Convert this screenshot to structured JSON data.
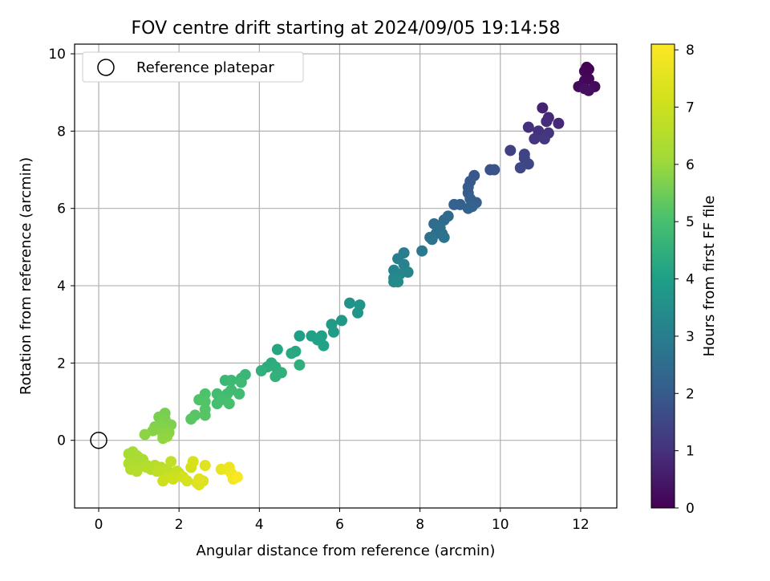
{
  "chart_data": {
    "type": "scatter",
    "title": "FOV centre drift starting at 2024/09/05 19:14:58",
    "xlabel": "Angular distance from reference (arcmin)",
    "ylabel": "Rotation from reference (arcmin)",
    "xlim": [
      -0.6,
      12.9
    ],
    "ylim": [
      -1.75,
      10.25
    ],
    "xticks": [
      0,
      2,
      4,
      6,
      8,
      10,
      12
    ],
    "yticks": [
      0,
      2,
      4,
      6,
      8,
      10
    ],
    "grid": true,
    "legend": {
      "location": "top-left",
      "entries": [
        {
          "label": "Reference platepar",
          "marker": "open-circle"
        }
      ]
    },
    "reference_point": {
      "x": 0,
      "y": 0
    },
    "colorbar": {
      "label": "Hours from first FF file",
      "colormap": "viridis",
      "range": [
        0,
        8.1
      ],
      "ticks": [
        0,
        1,
        2,
        3,
        4,
        5,
        6,
        7,
        8
      ]
    },
    "points": [
      {
        "x": 12.15,
        "y": 9.65,
        "h": 0.02
      },
      {
        "x": 12.2,
        "y": 9.6,
        "h": 0.05
      },
      {
        "x": 12.1,
        "y": 9.55,
        "h": 0.08
      },
      {
        "x": 12.2,
        "y": 9.35,
        "h": 0.1
      },
      {
        "x": 12.1,
        "y": 9.3,
        "h": 0.12
      },
      {
        "x": 12.05,
        "y": 9.2,
        "h": 0.15
      },
      {
        "x": 11.95,
        "y": 9.15,
        "h": 0.18
      },
      {
        "x": 12.35,
        "y": 9.15,
        "h": 0.2
      },
      {
        "x": 12.2,
        "y": 9.05,
        "h": 0.25
      },
      {
        "x": 12.1,
        "y": 9.1,
        "h": 0.3
      },
      {
        "x": 11.05,
        "y": 8.6,
        "h": 0.7
      },
      {
        "x": 11.2,
        "y": 8.35,
        "h": 0.8
      },
      {
        "x": 11.45,
        "y": 8.2,
        "h": 0.85
      },
      {
        "x": 11.15,
        "y": 8.25,
        "h": 0.9
      },
      {
        "x": 10.7,
        "y": 8.1,
        "h": 0.95
      },
      {
        "x": 10.95,
        "y": 8.0,
        "h": 1.0
      },
      {
        "x": 11.2,
        "y": 7.95,
        "h": 1.05
      },
      {
        "x": 10.85,
        "y": 7.8,
        "h": 1.1
      },
      {
        "x": 11.1,
        "y": 7.8,
        "h": 1.15
      },
      {
        "x": 10.25,
        "y": 7.5,
        "h": 1.35
      },
      {
        "x": 10.6,
        "y": 7.4,
        "h": 1.4
      },
      {
        "x": 10.6,
        "y": 7.3,
        "h": 1.45
      },
      {
        "x": 10.7,
        "y": 7.15,
        "h": 1.5
      },
      {
        "x": 10.5,
        "y": 7.05,
        "h": 1.55
      },
      {
        "x": 9.75,
        "y": 7.0,
        "h": 1.75
      },
      {
        "x": 9.85,
        "y": 7.0,
        "h": 1.8
      },
      {
        "x": 9.35,
        "y": 6.85,
        "h": 1.9
      },
      {
        "x": 9.25,
        "y": 6.7,
        "h": 1.95
      },
      {
        "x": 9.2,
        "y": 6.55,
        "h": 2.0
      },
      {
        "x": 9.2,
        "y": 6.4,
        "h": 2.05
      },
      {
        "x": 9.25,
        "y": 6.25,
        "h": 2.1
      },
      {
        "x": 9.4,
        "y": 6.15,
        "h": 2.12
      },
      {
        "x": 9.0,
        "y": 6.1,
        "h": 2.15
      },
      {
        "x": 8.85,
        "y": 6.1,
        "h": 2.18
      },
      {
        "x": 9.3,
        "y": 6.05,
        "h": 2.2
      },
      {
        "x": 9.2,
        "y": 6.0,
        "h": 2.22
      },
      {
        "x": 8.7,
        "y": 5.8,
        "h": 2.4
      },
      {
        "x": 8.6,
        "y": 5.7,
        "h": 2.45
      },
      {
        "x": 8.35,
        "y": 5.6,
        "h": 2.5
      },
      {
        "x": 8.5,
        "y": 5.5,
        "h": 2.55
      },
      {
        "x": 8.4,
        "y": 5.35,
        "h": 2.6
      },
      {
        "x": 8.55,
        "y": 5.35,
        "h": 2.62
      },
      {
        "x": 8.25,
        "y": 5.25,
        "h": 2.65
      },
      {
        "x": 8.6,
        "y": 5.25,
        "h": 2.68
      },
      {
        "x": 8.3,
        "y": 5.2,
        "h": 2.7
      },
      {
        "x": 8.05,
        "y": 4.9,
        "h": 2.85
      },
      {
        "x": 7.6,
        "y": 4.85,
        "h": 3.0
      },
      {
        "x": 7.45,
        "y": 4.7,
        "h": 3.05
      },
      {
        "x": 7.6,
        "y": 4.55,
        "h": 3.1
      },
      {
        "x": 7.35,
        "y": 4.4,
        "h": 3.15
      },
      {
        "x": 7.7,
        "y": 4.35,
        "h": 3.2
      },
      {
        "x": 7.5,
        "y": 4.3,
        "h": 3.25
      },
      {
        "x": 7.35,
        "y": 4.2,
        "h": 3.3
      },
      {
        "x": 7.35,
        "y": 4.1,
        "h": 3.35
      },
      {
        "x": 7.45,
        "y": 4.1,
        "h": 3.4
      },
      {
        "x": 6.25,
        "y": 3.55,
        "h": 3.6
      },
      {
        "x": 6.5,
        "y": 3.5,
        "h": 3.65
      },
      {
        "x": 6.45,
        "y": 3.3,
        "h": 3.7
      },
      {
        "x": 6.05,
        "y": 3.1,
        "h": 3.8
      },
      {
        "x": 5.8,
        "y": 3.0,
        "h": 3.85
      },
      {
        "x": 5.85,
        "y": 2.8,
        "h": 3.9
      },
      {
        "x": 5.0,
        "y": 2.7,
        "h": 4.0
      },
      {
        "x": 5.3,
        "y": 2.7,
        "h": 4.02
      },
      {
        "x": 5.55,
        "y": 2.7,
        "h": 4.05
      },
      {
        "x": 5.45,
        "y": 2.6,
        "h": 4.08
      },
      {
        "x": 5.6,
        "y": 2.45,
        "h": 4.1
      },
      {
        "x": 4.45,
        "y": 2.35,
        "h": 4.2
      },
      {
        "x": 4.9,
        "y": 2.3,
        "h": 4.25
      },
      {
        "x": 4.8,
        "y": 2.25,
        "h": 4.28
      },
      {
        "x": 4.3,
        "y": 2.0,
        "h": 4.35
      },
      {
        "x": 4.2,
        "y": 1.9,
        "h": 4.4
      },
      {
        "x": 4.4,
        "y": 1.9,
        "h": 4.42
      },
      {
        "x": 5.0,
        "y": 1.95,
        "h": 4.45
      },
      {
        "x": 4.05,
        "y": 1.8,
        "h": 4.48
      },
      {
        "x": 4.55,
        "y": 1.75,
        "h": 4.5
      },
      {
        "x": 4.4,
        "y": 1.65,
        "h": 4.52
      },
      {
        "x": 3.65,
        "y": 1.7,
        "h": 4.7
      },
      {
        "x": 3.55,
        "y": 1.6,
        "h": 4.72
      },
      {
        "x": 3.15,
        "y": 1.55,
        "h": 4.75
      },
      {
        "x": 3.3,
        "y": 1.55,
        "h": 4.78
      },
      {
        "x": 3.55,
        "y": 1.5,
        "h": 4.8
      },
      {
        "x": 3.3,
        "y": 1.3,
        "h": 4.82
      },
      {
        "x": 3.2,
        "y": 1.2,
        "h": 4.85
      },
      {
        "x": 3.5,
        "y": 1.2,
        "h": 4.88
      },
      {
        "x": 2.95,
        "y": 1.2,
        "h": 4.9
      },
      {
        "x": 3.15,
        "y": 1.1,
        "h": 4.92
      },
      {
        "x": 3.05,
        "y": 1.05,
        "h": 4.95
      },
      {
        "x": 2.95,
        "y": 0.95,
        "h": 4.98
      },
      {
        "x": 3.25,
        "y": 0.95,
        "h": 5.0
      },
      {
        "x": 2.65,
        "y": 1.2,
        "h": 5.1
      },
      {
        "x": 2.5,
        "y": 1.05,
        "h": 5.12
      },
      {
        "x": 2.65,
        "y": 1.0,
        "h": 5.15
      },
      {
        "x": 2.65,
        "y": 0.8,
        "h": 5.18
      },
      {
        "x": 2.65,
        "y": 0.65,
        "h": 5.2
      },
      {
        "x": 2.4,
        "y": 0.65,
        "h": 5.22
      },
      {
        "x": 2.3,
        "y": 0.55,
        "h": 5.25
      },
      {
        "x": 1.65,
        "y": 0.7,
        "h": 5.6
      },
      {
        "x": 1.5,
        "y": 0.6,
        "h": 5.62
      },
      {
        "x": 1.65,
        "y": 0.55,
        "h": 5.65
      },
      {
        "x": 1.8,
        "y": 0.4,
        "h": 5.68
      },
      {
        "x": 1.55,
        "y": 0.4,
        "h": 5.7
      },
      {
        "x": 1.4,
        "y": 0.35,
        "h": 5.72
      },
      {
        "x": 1.6,
        "y": 0.3,
        "h": 5.75
      },
      {
        "x": 1.35,
        "y": 0.25,
        "h": 5.78
      },
      {
        "x": 1.75,
        "y": 0.2,
        "h": 5.8
      },
      {
        "x": 1.6,
        "y": 0.15,
        "h": 5.82
      },
      {
        "x": 1.15,
        "y": 0.15,
        "h": 5.85
      },
      {
        "x": 1.7,
        "y": 0.1,
        "h": 5.88
      },
      {
        "x": 1.6,
        "y": 0.05,
        "h": 5.9
      },
      {
        "x": 0.85,
        "y": -0.3,
        "h": 6.2
      },
      {
        "x": 0.75,
        "y": -0.35,
        "h": 6.22
      },
      {
        "x": 0.95,
        "y": -0.4,
        "h": 6.25
      },
      {
        "x": 1.0,
        "y": -0.45,
        "h": 6.28
      },
      {
        "x": 1.1,
        "y": -0.5,
        "h": 6.3
      },
      {
        "x": 0.8,
        "y": -0.55,
        "h": 6.32
      },
      {
        "x": 0.95,
        "y": -0.6,
        "h": 6.35
      },
      {
        "x": 0.75,
        "y": -0.6,
        "h": 6.38
      },
      {
        "x": 1.2,
        "y": -0.65,
        "h": 6.4
      },
      {
        "x": 1.0,
        "y": -0.7,
        "h": 6.42
      },
      {
        "x": 0.8,
        "y": -0.75,
        "h": 6.45
      },
      {
        "x": 1.3,
        "y": -0.75,
        "h": 6.48
      },
      {
        "x": 0.95,
        "y": -0.8,
        "h": 6.5
      },
      {
        "x": 1.2,
        "y": -0.7,
        "h": 6.52
      },
      {
        "x": 1.4,
        "y": -0.65,
        "h": 6.55
      },
      {
        "x": 1.55,
        "y": -0.7,
        "h": 6.6
      },
      {
        "x": 1.7,
        "y": -0.75,
        "h": 6.65
      },
      {
        "x": 1.6,
        "y": -0.8,
        "h": 6.7
      },
      {
        "x": 1.45,
        "y": -0.8,
        "h": 6.72
      },
      {
        "x": 1.8,
        "y": -0.55,
        "h": 6.75
      },
      {
        "x": 1.95,
        "y": -0.8,
        "h": 6.8
      },
      {
        "x": 1.85,
        "y": -0.9,
        "h": 6.85
      },
      {
        "x": 1.7,
        "y": -0.95,
        "h": 6.9
      },
      {
        "x": 2.0,
        "y": -0.85,
        "h": 6.95
      },
      {
        "x": 1.6,
        "y": -1.05,
        "h": 7.0
      },
      {
        "x": 1.85,
        "y": -1.0,
        "h": 7.05
      },
      {
        "x": 2.1,
        "y": -0.95,
        "h": 7.1
      },
      {
        "x": 2.3,
        "y": -0.7,
        "h": 7.15
      },
      {
        "x": 2.2,
        "y": -1.05,
        "h": 7.2
      },
      {
        "x": 2.35,
        "y": -0.55,
        "h": 7.25
      },
      {
        "x": 2.45,
        "y": -1.1,
        "h": 7.3
      },
      {
        "x": 2.6,
        "y": -1.05,
        "h": 7.35
      },
      {
        "x": 2.5,
        "y": -1.15,
        "h": 7.4
      },
      {
        "x": 2.65,
        "y": -0.65,
        "h": 7.45
      },
      {
        "x": 2.5,
        "y": -1.0,
        "h": 7.5
      },
      {
        "x": 3.05,
        "y": -0.75,
        "h": 7.6
      },
      {
        "x": 3.2,
        "y": -0.75,
        "h": 7.7
      },
      {
        "x": 3.25,
        "y": -0.7,
        "h": 7.75
      },
      {
        "x": 3.3,
        "y": -0.85,
        "h": 7.8
      },
      {
        "x": 3.35,
        "y": -1.0,
        "h": 7.9
      },
      {
        "x": 3.45,
        "y": -0.95,
        "h": 8.0
      }
    ]
  }
}
